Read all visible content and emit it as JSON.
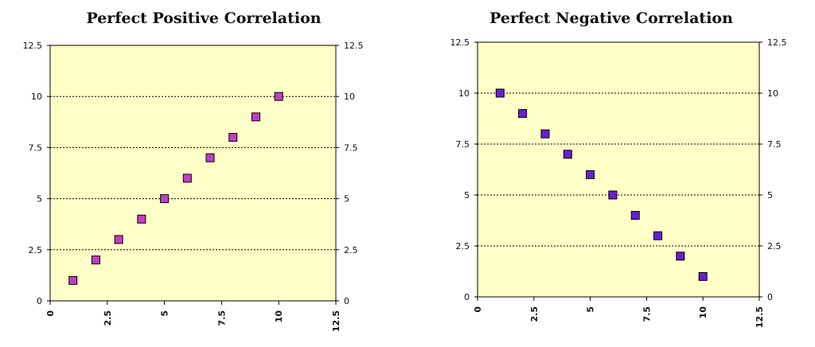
{
  "chart_data": [
    {
      "type": "scatter",
      "title": "Perfect Positive Correlation",
      "xlabel": "",
      "ylabel": "",
      "xlim": [
        0,
        12.5
      ],
      "ylim": [
        0,
        12.5
      ],
      "x_ticks": [
        "0",
        "2.5",
        "5",
        "7.5",
        "10",
        "12.5"
      ],
      "y_ticks": [
        "0",
        "2.5",
        "5",
        "7.5",
        "10",
        "12.5"
      ],
      "grid": "horizontal dotted",
      "background": "#ffffc8",
      "marker_color": "#c040c0",
      "points": [
        {
          "x": 1,
          "y": 1
        },
        {
          "x": 2,
          "y": 2
        },
        {
          "x": 3,
          "y": 3
        },
        {
          "x": 4,
          "y": 4
        },
        {
          "x": 5,
          "y": 5
        },
        {
          "x": 6,
          "y": 6
        },
        {
          "x": 7,
          "y": 7
        },
        {
          "x": 8,
          "y": 8
        },
        {
          "x": 9,
          "y": 9
        },
        {
          "x": 10,
          "y": 10
        }
      ]
    },
    {
      "type": "scatter",
      "title": "Perfect Negative Correlation",
      "xlabel": "",
      "ylabel": "",
      "xlim": [
        0,
        12.5
      ],
      "ylim": [
        0,
        12.5
      ],
      "x_ticks": [
        "0",
        "2.5",
        "5",
        "7.5",
        "10",
        "12.5"
      ],
      "y_ticks": [
        "0",
        "2.5",
        "5",
        "7.5",
        "10",
        "12.5"
      ],
      "grid": "horizontal dotted",
      "background": "#ffffc8",
      "marker_color": "#6a1fd0",
      "points": [
        {
          "x": 1,
          "y": 10
        },
        {
          "x": 2,
          "y": 9
        },
        {
          "x": 3,
          "y": 8
        },
        {
          "x": 4,
          "y": 7
        },
        {
          "x": 5,
          "y": 6
        },
        {
          "x": 6,
          "y": 5
        },
        {
          "x": 7,
          "y": 4
        },
        {
          "x": 8,
          "y": 3
        },
        {
          "x": 9,
          "y": 2
        },
        {
          "x": 10,
          "y": 1
        }
      ]
    }
  ]
}
